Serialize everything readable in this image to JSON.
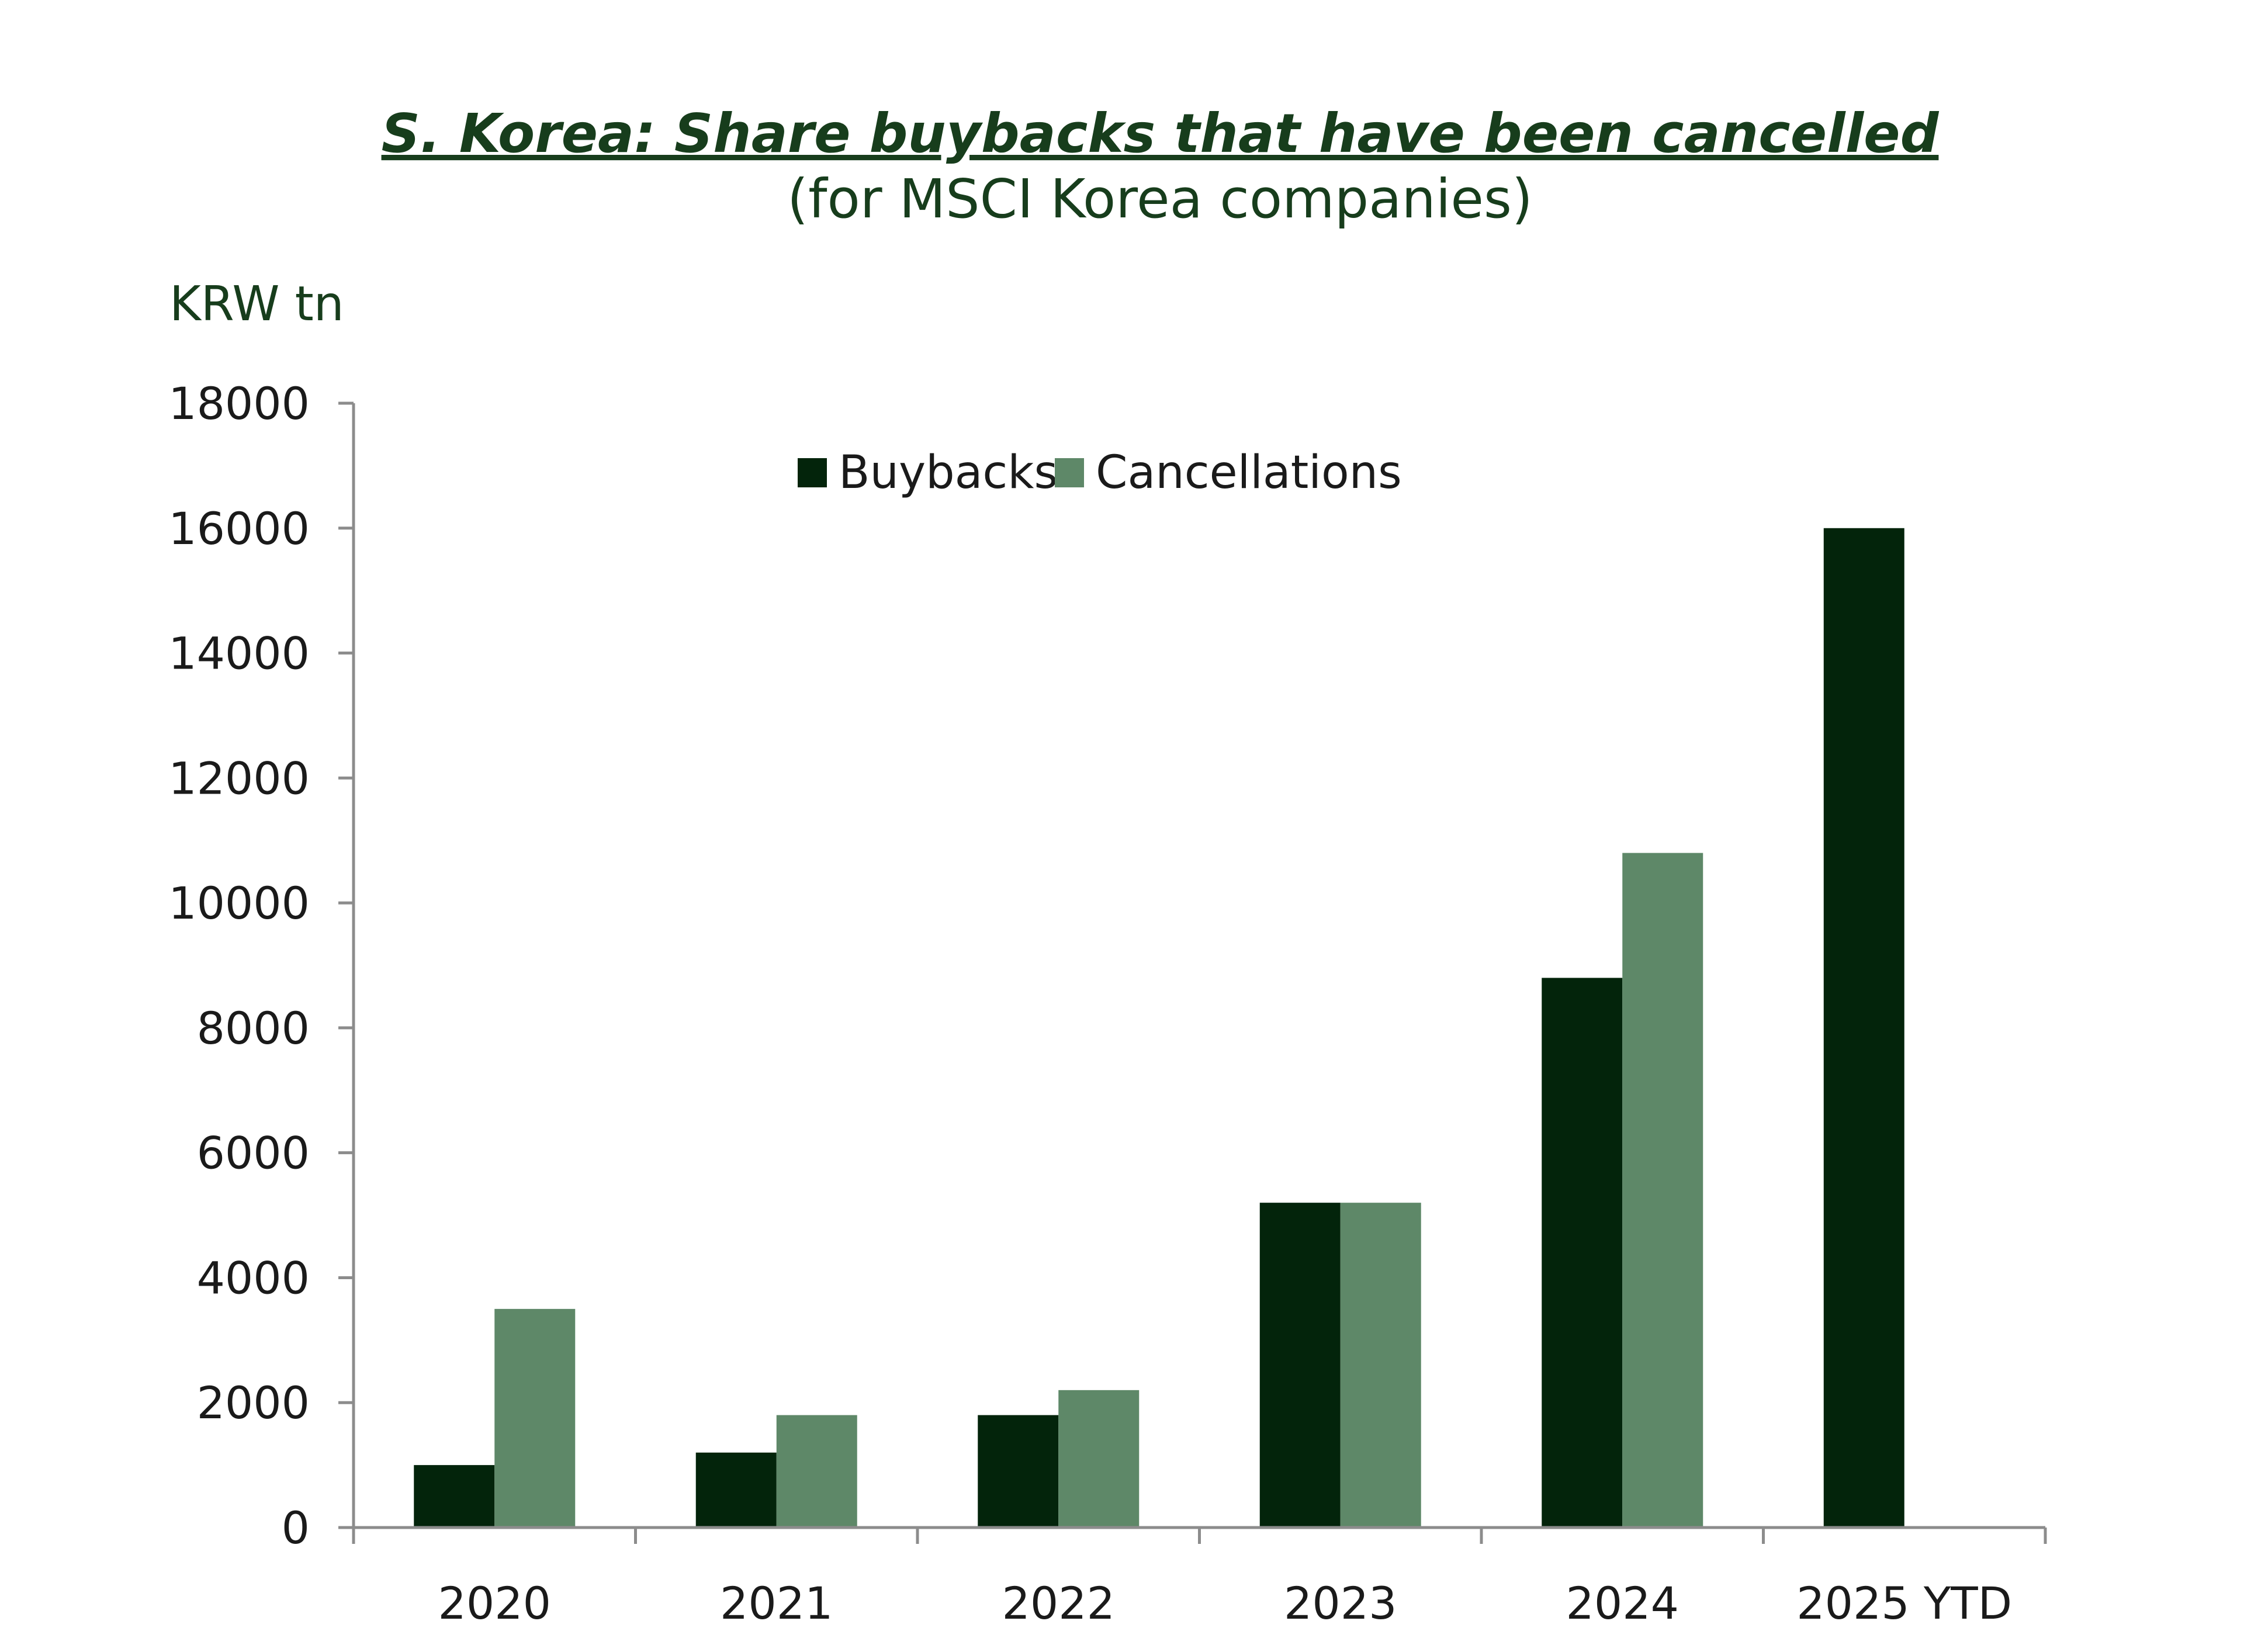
{
  "chart_data": {
    "type": "bar",
    "title": "S. Korea: Share buybacks that have been cancelled",
    "subtitle": "(for MSCI Korea companies)",
    "ylabel": "KRW tn",
    "xlabel": "",
    "categories": [
      "2020",
      "2021",
      "2022",
      "2023",
      "2024",
      "2025 YTD"
    ],
    "series": [
      {
        "name": "Buybacks",
        "color": "#03240b",
        "values": [
          1000,
          1200,
          1800,
          5200,
          8800,
          16000
        ]
      },
      {
        "name": "Cancellations",
        "color": "#5e8868",
        "values": [
          3500,
          1800,
          2200,
          5200,
          10800,
          null
        ]
      }
    ],
    "ylim": [
      0,
      18000
    ],
    "yticks": [
      0,
      2000,
      4000,
      6000,
      8000,
      10000,
      12000,
      14000,
      16000,
      18000
    ],
    "grid": false,
    "legend_position": "top-center",
    "colors": {
      "title": "#173d1c",
      "axis": "#8c8c8c",
      "text": "#1a1a1a"
    }
  }
}
